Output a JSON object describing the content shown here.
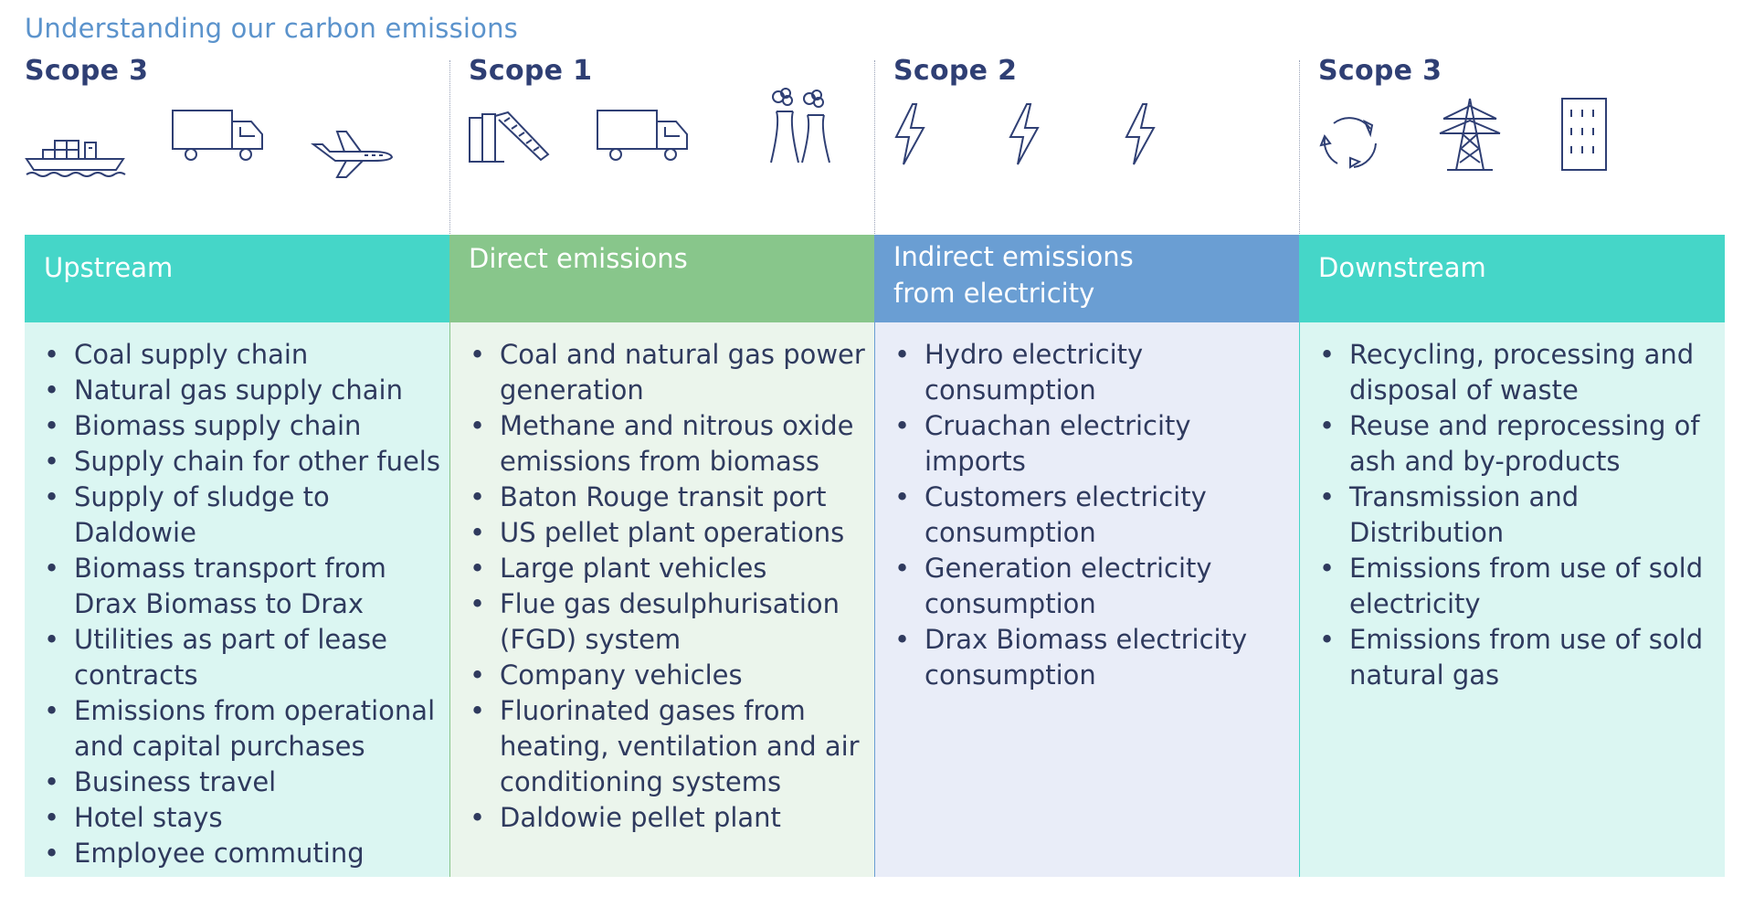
{
  "title": "Understanding our carbon emissions",
  "columns": [
    {
      "scope": "Scope 3",
      "header": [
        "Upstream"
      ],
      "header_color": "#45d6c8",
      "body_color": "#dbf6f2",
      "divider_color": "#c9d2d8",
      "icons": [
        "ship-icon",
        "truck-icon",
        "airplane-icon"
      ],
      "items": [
        "Coal supply chain",
        "Natural gas supply chain",
        "Biomass supply chain",
        "Supply chain for other fuels",
        "Supply of sludge to Daldowie",
        "Biomass transport from Drax Biomass to Drax",
        "Utilities as part of lease contracts",
        "Emissions from operational and capital purchases",
        "Business travel",
        "Hotel stays",
        "Employee commuting"
      ]
    },
    {
      "scope": "Scope 1",
      "header": [
        "Direct emissions"
      ],
      "header_color": "#88c68b",
      "body_color": "#ebf5ec",
      "divider_color": "#88c68b",
      "icons": [
        "conveyor-silo-icon",
        "truck-icon",
        "power-plant-icon"
      ],
      "items": [
        "Coal and natural gas power generation",
        "Methane and nitrous oxide emissions from biomass",
        "Baton Rouge transit port",
        "US pellet plant operations",
        "Large plant vehicles",
        "Flue gas desulphurisation (FGD) system",
        "Company vehicles",
        "Fluorinated gases from heating, ventilation and air conditioning systems",
        "Daldowie pellet plant"
      ]
    },
    {
      "scope": "Scope 2",
      "header": [
        "Indirect emissions",
        "from electricity"
      ],
      "header_color": "#6a9ed3",
      "body_color": "#e9edf8",
      "divider_color": "#6a9ed3",
      "icons": [
        "lightning-icon",
        "lightning-icon",
        "lightning-icon"
      ],
      "items": [
        "Hydro electricity consumption",
        "Cruachan electricity imports",
        "Customers electricity consumption",
        "Generation electricity consumption",
        "Drax Biomass electricity consumption"
      ]
    },
    {
      "scope": "Scope 3",
      "header": [
        "Downstream"
      ],
      "header_color": "#45d6c8",
      "body_color": "#dbf6f2",
      "divider_color": "#45d6c8",
      "icons": [
        "recycle-icon",
        "pylon-icon",
        "building-icon"
      ],
      "items": [
        "Recycling, processing and disposal of waste",
        "Reuse and reprocessing of ash and by-products",
        "Transmission and Distribution",
        "Emissions from use of sold electricity",
        "Emissions from use of sold natural gas"
      ]
    }
  ],
  "colors": {
    "title": "#5b93cc",
    "scope_text": "#2f3f74",
    "body_text": "#2f3a5e",
    "icon_stroke": "#2f3f74"
  }
}
